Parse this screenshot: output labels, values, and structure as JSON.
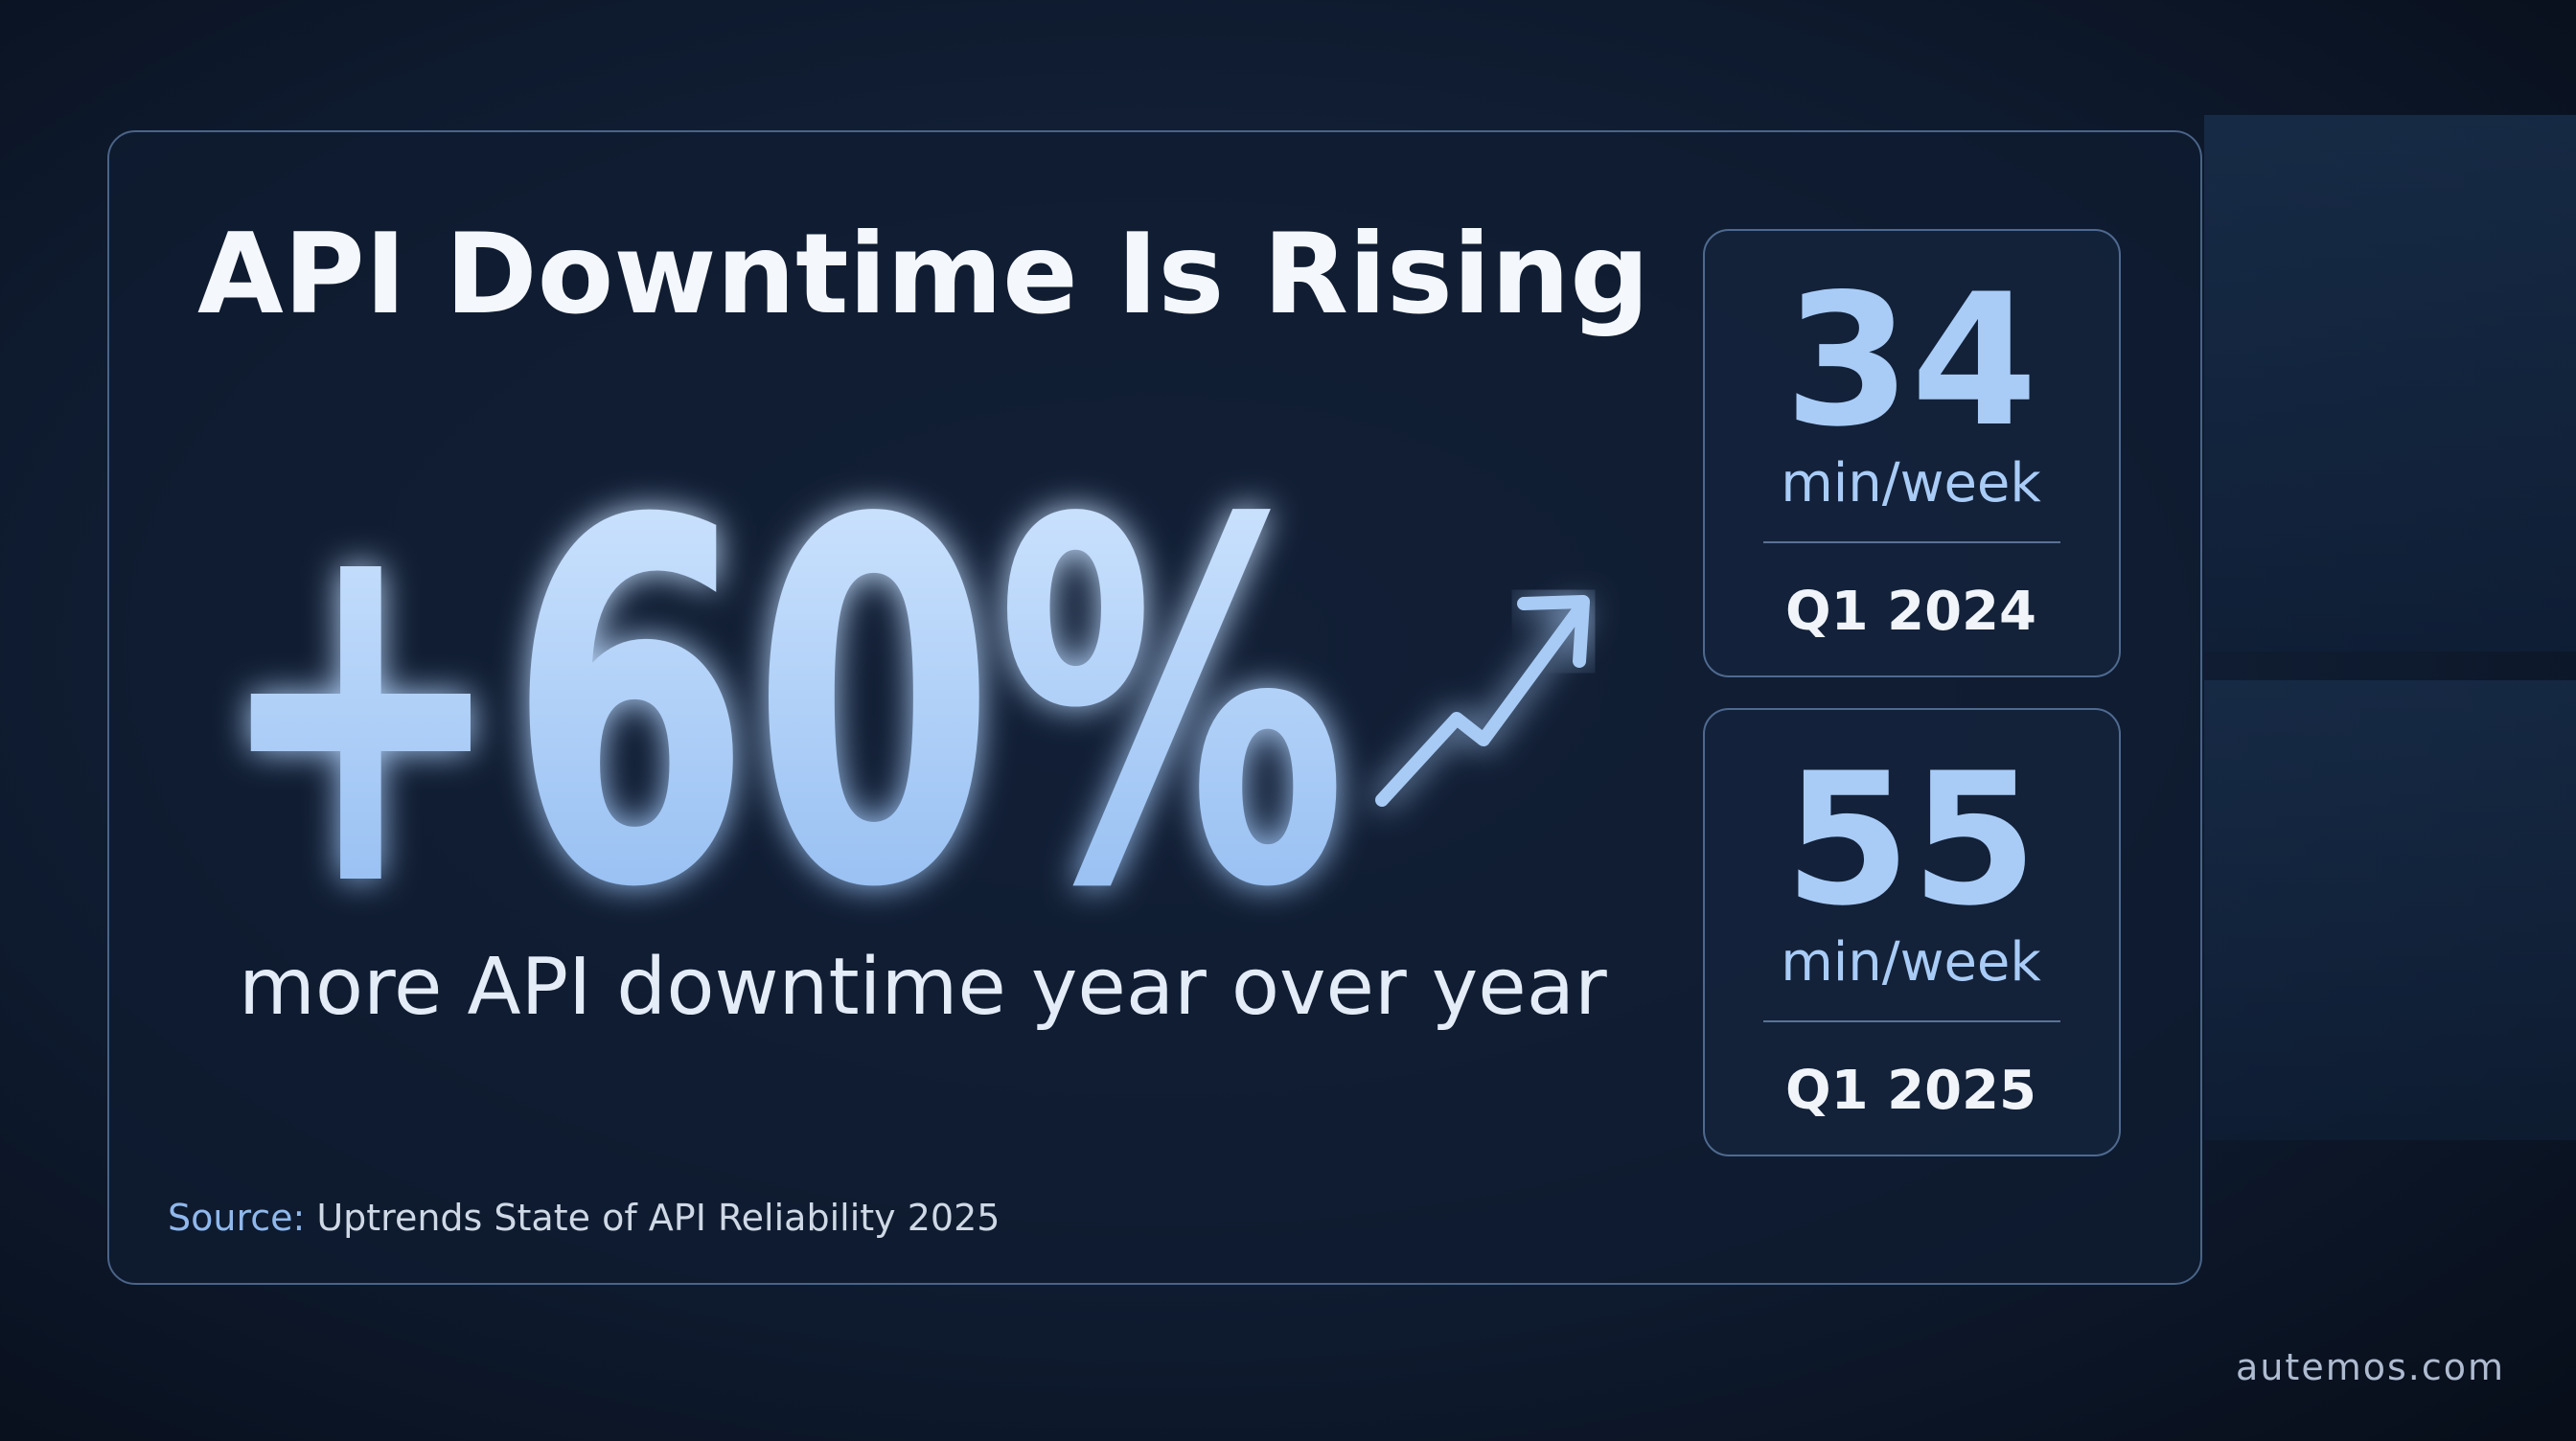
{
  "title": "API Downtime Is Rising",
  "headline": "+60%",
  "subtitle": "more API downtime year over year",
  "stats": [
    {
      "value": 34,
      "unit": "min/week",
      "period": "Q1 2024"
    },
    {
      "value": 55,
      "unit": "min/week",
      "period": "Q1 2025"
    }
  ],
  "source": {
    "label": "Source:",
    "text": "Uptrends State of API Reliability 2025"
  },
  "footer": "autemos.com"
}
